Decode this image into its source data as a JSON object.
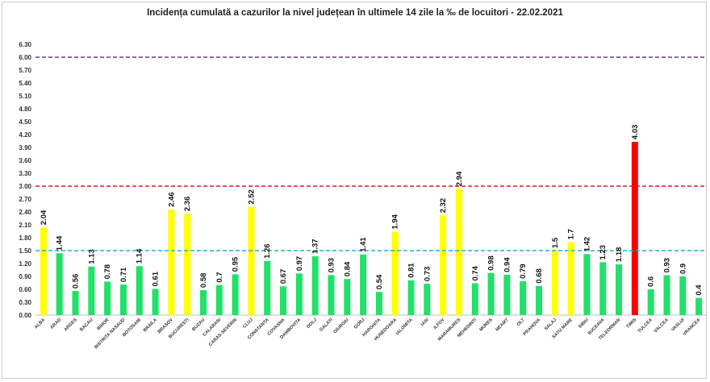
{
  "chart_data": {
    "type": "bar",
    "title": "Incidența cumulată a cazurilor la nivel județean în ultimele 14 zile la ‰ de locuitori - 22.02.2021",
    "xlabel": "",
    "ylabel": "",
    "ylim": [
      0,
      6.3
    ],
    "yticks": [
      "0.00",
      "0.30",
      "0.60",
      "0.90",
      "1.20",
      "1.50",
      "1.80",
      "2.10",
      "2.40",
      "2.70",
      "3.00",
      "3.30",
      "3.60",
      "3.90",
      "4.20",
      "4.50",
      "4.80",
      "5.10",
      "5.40",
      "5.70",
      "6.00",
      "6.30"
    ],
    "categories": [
      "ALBA",
      "ARAD",
      "ARGES",
      "BACAU",
      "BIHOR",
      "BISTRITA NASAUD",
      "BOTOSANI",
      "BRAILA",
      "BRASOV",
      "BUCURESTI",
      "BUZAU",
      "CALARASI",
      "CARAS-SEVERIN",
      "CLUJ",
      "CONSTANTA",
      "COVASNA",
      "DAMBOVITA",
      "DOLJ",
      "GALATI",
      "GIURGIU",
      "GORJ",
      "HARGHITA",
      "HUNEDOARA",
      "IALOMITA",
      "IASI",
      "ILFOV",
      "MARAMURES",
      "MEHEDINTI",
      "MURES",
      "NEAMT",
      "OLT",
      "PRAHOVA",
      "SALAJ",
      "SATU MARE",
      "SIBIU",
      "SUCEAVA",
      "TELEORMAN",
      "TIMIS",
      "TULCEA",
      "VALCEA",
      "VASLUI",
      "VRANCEA"
    ],
    "values": [
      2.04,
      1.44,
      0.56,
      1.13,
      0.78,
      0.71,
      1.14,
      0.61,
      2.46,
      2.36,
      0.58,
      0.7,
      0.95,
      2.52,
      1.26,
      0.67,
      0.97,
      1.37,
      0.93,
      0.84,
      1.41,
      0.54,
      1.94,
      0.81,
      0.73,
      2.32,
      2.94,
      0.74,
      0.98,
      0.94,
      0.79,
      0.68,
      1.5,
      1.7,
      1.42,
      1.23,
      1.18,
      4.03,
      0.6,
      0.93,
      0.9,
      0.4
    ],
    "value_labels": [
      "2.04",
      "1.44",
      "0.56",
      "1.13",
      "0.78",
      "0.71",
      "1.14",
      "0.61",
      "2.46",
      "2.36",
      "0.58",
      "0.7",
      "0.95",
      "2.52",
      "1.26",
      "0.67",
      "0.97",
      "1.37",
      "0.93",
      "0.84",
      "1.41",
      "0.54",
      "1.94",
      "0.81",
      "0.73",
      "2.32",
      "2.94",
      "0.74",
      "0.98",
      "0.94",
      "0.79",
      "0.68",
      "1.5",
      "1.7",
      "1.42",
      "1.23",
      "1.18",
      "4.03",
      "0.6",
      "0.93",
      "0.9",
      "0.4"
    ],
    "thresholds": [
      {
        "value": 6.0,
        "color": "#7030a0"
      },
      {
        "value": 3.0,
        "color": "#e0191e"
      },
      {
        "value": 1.5,
        "color": "#1fb4d2"
      }
    ],
    "colors": {
      "green": "#22e06a",
      "yellow": "#ffff00",
      "red": "#ff0000"
    },
    "grid": false
  }
}
